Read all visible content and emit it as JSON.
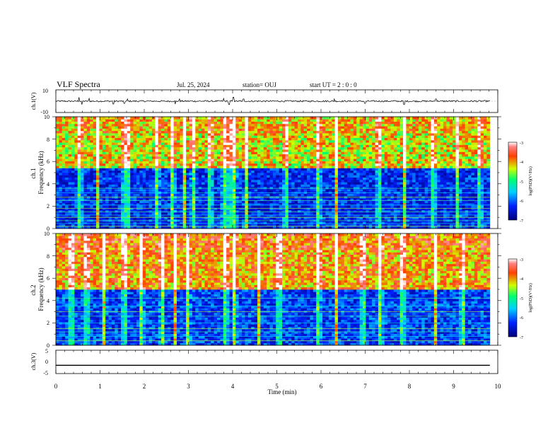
{
  "header": {
    "title": "VLF Spectra",
    "date": "Jul. 25, 2024",
    "station": "station= OUJ",
    "start_ut": "start UT =  2 : 0 : 0"
  },
  "chart_data": [
    {
      "type": "line",
      "name": "ch1-waveform",
      "ylabel": "ch.1(V)",
      "ylim": [
        -10,
        10
      ],
      "yticks": [
        "10",
        "-10"
      ],
      "xlim": [
        0,
        10
      ],
      "baseline_v": 0,
      "spikes": [
        {
          "x": 0.52,
          "y": 3.5
        },
        {
          "x": 0.59,
          "y": -3.0
        },
        {
          "x": 0.75,
          "y": 2.5
        },
        {
          "x": 1.3,
          "y": -2.5
        },
        {
          "x": 1.55,
          "y": -2.0
        },
        {
          "x": 1.62,
          "y": 2.0
        },
        {
          "x": 2.7,
          "y": -2.5
        },
        {
          "x": 2.8,
          "y": 2.0
        },
        {
          "x": 3.8,
          "y": 2.5
        },
        {
          "x": 3.92,
          "y": -3.0
        },
        {
          "x": 4.02,
          "y": 3.5
        },
        {
          "x": 4.25,
          "y": 2.0
        },
        {
          "x": 6.3,
          "y": 2.0
        },
        {
          "x": 7.0,
          "y": -2.0
        },
        {
          "x": 7.88,
          "y": -3.0
        },
        {
          "x": 8.6,
          "y": 2.0
        }
      ]
    },
    {
      "type": "heatmap",
      "name": "ch1-spectrogram",
      "ylabel": "ch.1\nFrequency (kHz)",
      "ylim": [
        0,
        10
      ],
      "yticks": [
        "0",
        "2",
        "4",
        "6",
        "8",
        "10"
      ],
      "xlim": [
        0,
        10
      ],
      "colorbar": {
        "label": "log(PSD)(V²/Hz)",
        "range": [
          -7,
          -3
        ],
        "ticks": [
          "-3",
          "-4",
          "-5",
          "-6",
          "-7"
        ]
      },
      "band_edge_khz": 5.5,
      "high_band_log_psd": -4.3,
      "low_band_log_psd": -6.3,
      "tone_lines_khz": [
        0.2,
        0.45,
        0.7,
        1.0,
        1.2,
        1.5,
        1.8,
        2.1,
        2.5,
        2.8,
        3.2,
        3.6
      ],
      "bursts_min": [
        0.55,
        0.95,
        1.55,
        1.62,
        2.3,
        2.65,
        2.9,
        3.1,
        3.5,
        3.8,
        3.93,
        4.05,
        4.3,
        5.2,
        5.95,
        6.35,
        7.3,
        7.9,
        8.55,
        9.1,
        9.6
      ]
    },
    {
      "type": "heatmap",
      "name": "ch2-spectrogram",
      "ylabel": "ch.2\nFrequency (kHz)",
      "ylim": [
        0,
        10
      ],
      "yticks": [
        "0",
        "2",
        "4",
        "6",
        "8",
        "10"
      ],
      "xlim": [
        0,
        10
      ],
      "colorbar": {
        "label": "log(PSD)(V²/Hz)",
        "range": [
          -7,
          -3
        ],
        "ticks": [
          "-3",
          "-4",
          "-5",
          "-6",
          "-7"
        ]
      },
      "band_edge_khz": 5.0,
      "high_band_log_psd": -4.0,
      "low_band_log_psd": -6.2,
      "tone_lines_khz": [
        0.4,
        0.8,
        1.2,
        1.5,
        2.0,
        2.6,
        3.0,
        3.5,
        4.2
      ],
      "bursts_min": [
        0.35,
        0.7,
        1.1,
        1.55,
        1.95,
        2.4,
        2.7,
        3.0,
        3.85,
        4.05,
        4.6,
        5.05,
        5.95,
        6.35,
        6.95,
        7.35,
        7.85,
        8.6,
        9.2
      ]
    },
    {
      "type": "line",
      "name": "ch3-waveform",
      "ylabel": "ch.3(V)",
      "ylim": [
        -5,
        5
      ],
      "yticks": [
        "5",
        "0",
        "-5"
      ],
      "xlim": [
        0,
        10
      ],
      "constant_v": -1.5
    }
  ],
  "xaxis": {
    "label": "Time (min)",
    "ticks": [
      "0",
      "1",
      "2",
      "3",
      "4",
      "5",
      "6",
      "7",
      "8",
      "9",
      "10"
    ]
  }
}
